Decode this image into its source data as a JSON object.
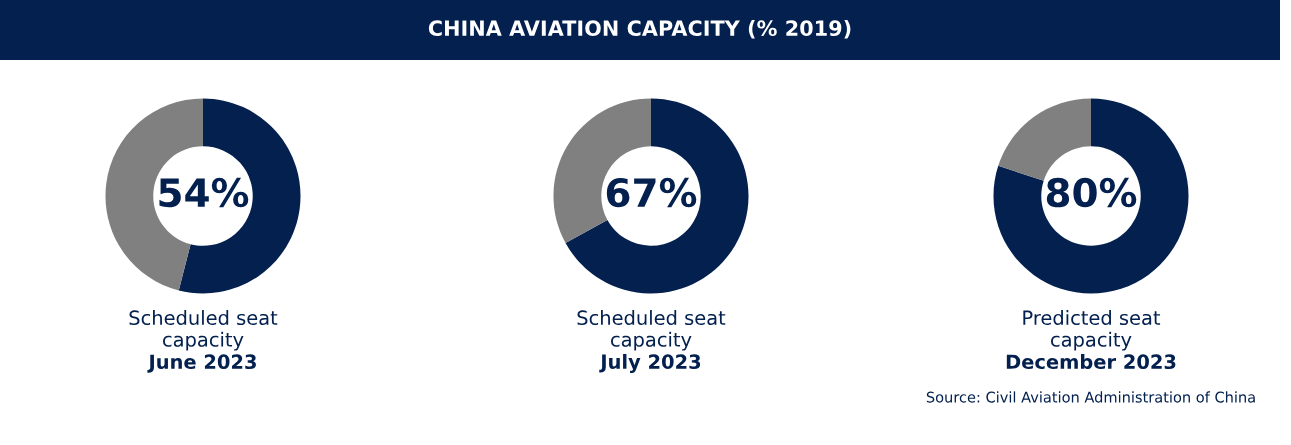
{
  "chart_data": [
    {
      "type": "donut",
      "categories": [
        null,
        null
      ],
      "values": [
        54,
        46
      ],
      "colors": [
        "#03204f",
        "#808080"
      ],
      "value_labels": [
        "54%",
        null
      ],
      "annotations": [
        "Scheduled seat\ncapacity",
        "June 2023"
      ]
    },
    {
      "type": "donut",
      "title": "CHINA AVIATION CAPACITY (% 2019)",
      "categories": [
        null,
        null
      ],
      "values": [
        67,
        33
      ],
      "colors": [
        "#03204f",
        "#808080"
      ],
      "value_labels": [
        "67%",
        null
      ],
      "annotations": [
        "Scheduled seat\ncapacity",
        "July 2023"
      ]
    },
    {
      "type": "donut",
      "categories": [
        null,
        null
      ],
      "values": [
        80,
        20
      ],
      "colors": [
        "#03204f",
        "#808080"
      ],
      "value_labels": [
        "80%",
        null
      ],
      "annotations": [
        "Predicted seat\ncapacity",
        "December 2023",
        "Source: Civil Aviation Administration of China"
      ]
    }
  ]
}
